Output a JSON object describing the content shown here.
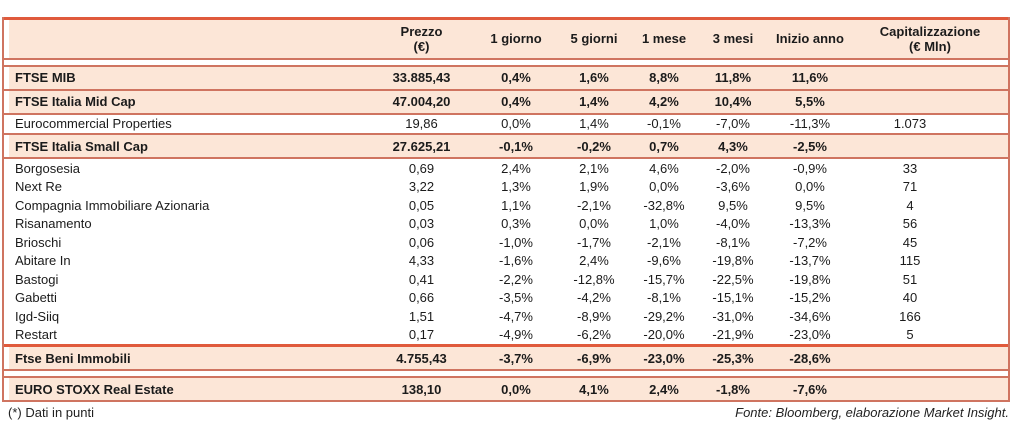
{
  "table": {
    "columns": [
      {
        "label": "",
        "sub": ""
      },
      {
        "label": "Prezzo",
        "sub": "(€)"
      },
      {
        "label": "1 giorno",
        "sub": ""
      },
      {
        "label": "5 giorni",
        "sub": ""
      },
      {
        "label": "1 mese",
        "sub": ""
      },
      {
        "label": "3 mesi",
        "sub": ""
      },
      {
        "label": "Inizio anno",
        "sub": ""
      },
      {
        "label": "Capitalizzazione",
        "sub": "(€ Mln)"
      }
    ],
    "rows": [
      {
        "name": "FTSE MIB",
        "kind": "index",
        "prezzo": "33.885,43",
        "d1": "0,4%",
        "d5": "1,6%",
        "m1": "8,8%",
        "m3": "11,8%",
        "ytd": "11,6%",
        "cap": ""
      },
      {
        "name": "FTSE Italia Mid Cap",
        "kind": "index",
        "prezzo": "47.004,20",
        "d1": "0,4%",
        "d5": "1,4%",
        "m1": "4,2%",
        "m3": "10,4%",
        "ytd": "5,5%",
        "cap": ""
      },
      {
        "name": "Eurocommercial Properties",
        "kind": "stock",
        "prezzo": "19,86",
        "d1": "0,0%",
        "d5": "1,4%",
        "m1": "-0,1%",
        "m3": "-7,0%",
        "ytd": "-11,3%",
        "cap": "1.073"
      },
      {
        "name": "FTSE Italia Small Cap",
        "kind": "index",
        "prezzo": "27.625,21",
        "d1": "-0,1%",
        "d5": "-0,2%",
        "m1": "0,7%",
        "m3": "4,3%",
        "ytd": "-2,5%",
        "cap": ""
      },
      {
        "name": "Borgosesia",
        "kind": "stock",
        "prezzo": "0,69",
        "d1": "2,4%",
        "d5": "2,1%",
        "m1": "4,6%",
        "m3": "-2,0%",
        "ytd": "-0,9%",
        "cap": "33"
      },
      {
        "name": "Next Re",
        "kind": "stock",
        "prezzo": "3,22",
        "d1": "1,3%",
        "d5": "1,9%",
        "m1": "0,0%",
        "m3": "-3,6%",
        "ytd": "0,0%",
        "cap": "71"
      },
      {
        "name": "Compagnia Immobiliare Azionaria",
        "kind": "stock",
        "prezzo": "0,05",
        "d1": "1,1%",
        "d5": "-2,1%",
        "m1": "-32,8%",
        "m3": "9,5%",
        "ytd": "9,5%",
        "cap": "4"
      },
      {
        "name": "Risanamento",
        "kind": "stock",
        "prezzo": "0,03",
        "d1": "0,3%",
        "d5": "0,0%",
        "m1": "1,0%",
        "m3": "-4,0%",
        "ytd": "-13,3%",
        "cap": "56"
      },
      {
        "name": "Brioschi",
        "kind": "stock",
        "prezzo": "0,06",
        "d1": "-1,0%",
        "d5": "-1,7%",
        "m1": "-2,1%",
        "m3": "-8,1%",
        "ytd": "-7,2%",
        "cap": "45"
      },
      {
        "name": "Abitare In",
        "kind": "stock",
        "prezzo": "4,33",
        "d1": "-1,6%",
        "d5": "2,4%",
        "m1": "-9,6%",
        "m3": "-19,8%",
        "ytd": "-13,7%",
        "cap": "115"
      },
      {
        "name": "Bastogi",
        "kind": "stock",
        "prezzo": "0,41",
        "d1": "-2,2%",
        "d5": "-12,8%",
        "m1": "-15,7%",
        "m3": "-22,5%",
        "ytd": "-19,8%",
        "cap": "51"
      },
      {
        "name": "Gabetti",
        "kind": "stock",
        "prezzo": "0,66",
        "d1": "-3,5%",
        "d5": "-4,2%",
        "m1": "-8,1%",
        "m3": "-15,1%",
        "ytd": "-15,2%",
        "cap": "40"
      },
      {
        "name": "Igd-Siiq",
        "kind": "stock",
        "prezzo": "1,51",
        "d1": "-4,7%",
        "d5": "-8,9%",
        "m1": "-29,2%",
        "m3": "-31,0%",
        "ytd": "-34,6%",
        "cap": "166"
      },
      {
        "name": "Restart",
        "kind": "stock",
        "prezzo": "0,17",
        "d1": "-4,9%",
        "d5": "-6,2%",
        "m1": "-20,0%",
        "m3": "-21,9%",
        "ytd": "-23,0%",
        "cap": "5"
      },
      {
        "name": "Ftse Beni Immobili",
        "kind": "index",
        "prezzo": "4.755,43",
        "d1": "-3,7%",
        "d5": "-6,9%",
        "m1": "-23,0%",
        "m3": "-25,3%",
        "ytd": "-28,6%",
        "cap": ""
      },
      {
        "name": "EURO STOXX Real Estate",
        "kind": "index",
        "prezzo": "138,10",
        "d1": "0,0%",
        "d5": "4,1%",
        "m1": "2,4%",
        "m3": "-1,8%",
        "ytd": "-7,6%",
        "cap": ""
      }
    ]
  },
  "footnotes": {
    "left": "(*) Dati in punti",
    "right": "Fonte: Bloomberg, elaborazione Market Insight."
  },
  "colors": {
    "row_highlight": "#fce6d7",
    "rule_thin": "#cf7460",
    "rule_thick": "#e05a3c",
    "text": "#1b1b1b"
  }
}
